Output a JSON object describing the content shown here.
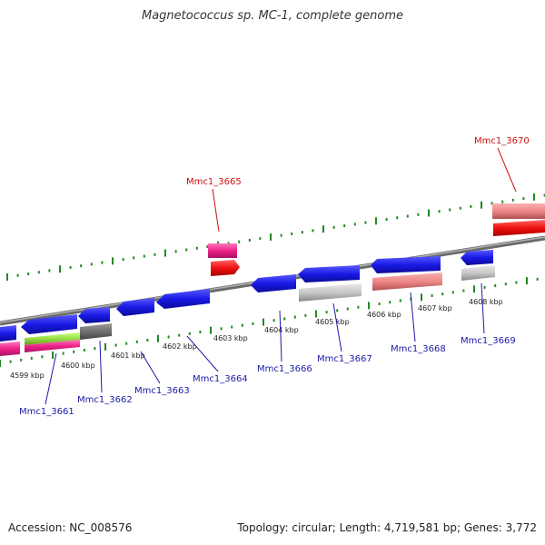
{
  "title": "Magnetococcus sp. MC-1, complete genome",
  "footer": {
    "accession": "Accession: NC_008576",
    "summary": "Topology: circular; Length: 4,719,581 bp; Genes: 3,772"
  },
  "ticks": [
    "4599 kbp",
    "4600 kbp",
    "4601 kbp",
    "4602 kbp",
    "4603 kbp",
    "4604 kbp",
    "4605 kbp",
    "4606 kbp",
    "4607 kbp",
    "4608 kbp"
  ],
  "genes": [
    {
      "id": "Mmc1_3661",
      "strand": "minus"
    },
    {
      "id": "Mmc1_3662",
      "strand": "minus"
    },
    {
      "id": "Mmc1_3663",
      "strand": "minus"
    },
    {
      "id": "Mmc1_3664",
      "strand": "minus"
    },
    {
      "id": "Mmc1_3665",
      "strand": "plus"
    },
    {
      "id": "Mmc1_3666",
      "strand": "minus"
    },
    {
      "id": "Mmc1_3667",
      "strand": "minus"
    },
    {
      "id": "Mmc1_3668",
      "strand": "minus"
    },
    {
      "id": "Mmc1_3669",
      "strand": "minus"
    },
    {
      "id": "Mmc1_3670",
      "strand": "plus"
    }
  ],
  "colors": {
    "minus_label": "#1a1aa8",
    "plus_label": "#cc1111",
    "gene_blue": "#1a1ae6",
    "gene_red": "#ee1111",
    "gene_pink": "#ee2288",
    "gene_salmon": "#ee8888",
    "gene_gray": "#c8c8c8",
    "gene_darkgray": "#707070",
    "gene_green": "#99dd44",
    "tick_green": "#228822",
    "backbone": "#888888"
  }
}
